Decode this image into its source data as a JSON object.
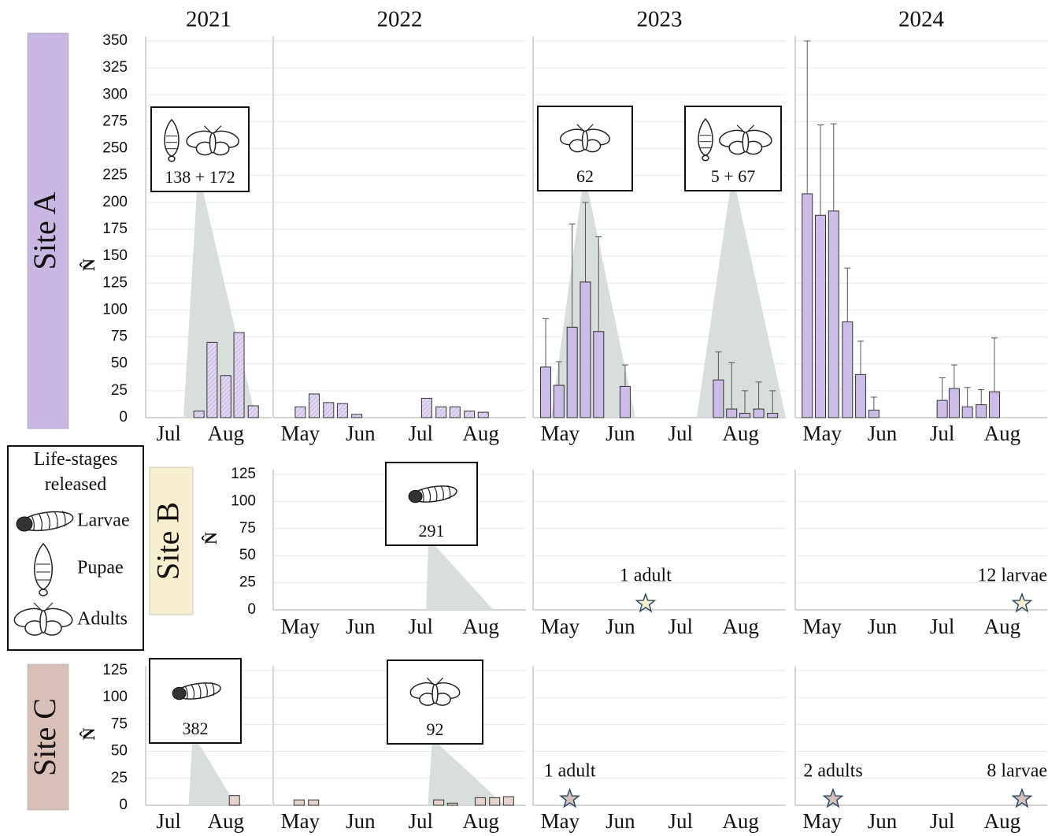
{
  "legend": {
    "title": "Life-stages released",
    "items": [
      "Larvae",
      "Pupae",
      "Adults"
    ]
  },
  "chart_data": {
    "type": "bar",
    "years": [
      "2021",
      "2022",
      "2023",
      "2024"
    ],
    "grid": true,
    "sites": [
      {
        "label": "Site A",
        "y_label": "N̂",
        "color": "#c8b6e3",
        "bar_color": "#cdbce8",
        "ylim": [
          0,
          350
        ],
        "yticks": [
          0,
          25,
          50,
          75,
          100,
          125,
          150,
          175,
          200,
          225,
          250,
          275,
          300,
          325,
          350
        ],
        "panels": [
          {
            "xlim": [
              6.6,
              8.8
            ],
            "xticks": [
              {
                "value": 7,
                "label": "Jul"
              },
              {
                "value": 8,
                "label": "Aug"
              }
            ],
            "hatched": true,
            "x": [
              7.53,
              7.76,
              8.0,
              8.23,
              8.48
            ],
            "values": [
              6,
              70,
              39,
              79,
              11
            ],
            "releases": [
              {
                "text": "138 + 172",
                "icons": [
                  "Pupae",
                  "Adults"
                ],
                "span": [
                  7.26,
                  8.52
                ]
              }
            ]
          },
          {
            "xlim": [
              4.55,
              8.75
            ],
            "xticks": [
              {
                "value": 5,
                "label": "May"
              },
              {
                "value": 6,
                "label": "Jun"
              },
              {
                "value": 7,
                "label": "Jul"
              },
              {
                "value": 8,
                "label": "Aug"
              }
            ],
            "hatched": true,
            "x": [
              5.0,
              5.23,
              5.47,
              5.7,
              5.94,
              7.1,
              7.34,
              7.57,
              7.81,
              8.04
            ],
            "values": [
              10,
              22,
              14,
              13,
              3,
              18,
              10,
              10,
              6,
              5
            ]
          },
          {
            "xlim": [
              4.55,
              8.75
            ],
            "xticks": [
              {
                "value": 5,
                "label": "May"
              },
              {
                "value": 6,
                "label": "Jun"
              },
              {
                "value": 7,
                "label": "Jul"
              },
              {
                "value": 8,
                "label": "Aug"
              }
            ],
            "x": [
              4.76,
              4.98,
              5.2,
              5.42,
              5.64,
              6.08,
              7.63,
              7.85,
              8.07,
              8.3,
              8.53
            ],
            "values": [
              47,
              30,
              84,
              126,
              80,
              29,
              35,
              8,
              4,
              8,
              4
            ],
            "errors": [
              45,
              22,
              96,
              74,
              88,
              20,
              26,
              43,
              21,
              25,
              21
            ],
            "releases": [
              {
                "text": "62",
                "icons": [
                  "Adults"
                ],
                "span": [
                  4.85,
                  6.25
                ]
              },
              {
                "text": "5 + 67",
                "icons": [
                  "Pupae",
                  "Adults"
                ],
                "span": [
                  7.27,
                  8.75
                ]
              }
            ]
          },
          {
            "xlim": [
              4.55,
              8.75
            ],
            "xticks": [
              {
                "value": 5,
                "label": "May"
              },
              {
                "value": 6,
                "label": "Jun"
              },
              {
                "value": 7,
                "label": "Jul"
              },
              {
                "value": 8,
                "label": "Aug"
              }
            ],
            "x": [
              4.75,
              4.97,
              5.19,
              5.42,
              5.64,
              5.86,
              7.0,
              7.2,
              7.42,
              7.65,
              7.87
            ],
            "values": [
              208,
              188,
              192,
              89,
              40,
              7,
              16,
              27,
              10,
              12,
              24
            ],
            "errors": [
              142,
              84,
              81,
              50,
              31,
              12,
              21,
              22,
              18,
              14,
              50
            ]
          }
        ]
      },
      {
        "label": "Site B",
        "y_label": "N̂",
        "color": "#f8efd0",
        "bar_color": "#f8efd0",
        "ylim": [
          0,
          125
        ],
        "yticks": [
          0,
          25,
          50,
          75,
          100,
          125
        ],
        "panels": [
          null,
          {
            "xlim": [
              4.55,
              8.75
            ],
            "xticks": [
              {
                "value": 5,
                "label": "May"
              },
              {
                "value": 6,
                "label": "Jun"
              },
              {
                "value": 7,
                "label": "Jul"
              },
              {
                "value": 8,
                "label": "Aug"
              }
            ],
            "x": [],
            "values": [],
            "releases": [
              {
                "text": "291",
                "icons": [
                  "Larvae"
                ],
                "span": [
                  7.09,
                  8.21
                ]
              }
            ]
          },
          {
            "xlim": [
              4.55,
              8.75
            ],
            "xticks": [
              {
                "value": 5,
                "label": "May"
              },
              {
                "value": 6,
                "label": "Jun"
              },
              {
                "value": 7,
                "label": "Jul"
              },
              {
                "value": 8,
                "label": "Aug"
              }
            ],
            "x": [],
            "values": [],
            "markers": [
              {
                "x": 6.42,
                "label": "1 adult"
              }
            ]
          },
          {
            "xlim": [
              4.55,
              8.75
            ],
            "xticks": [
              {
                "value": 5,
                "label": "May"
              },
              {
                "value": 6,
                "label": "Jun"
              },
              {
                "value": 7,
                "label": "Jul"
              },
              {
                "value": 8,
                "label": "Aug"
              }
            ],
            "x": [],
            "values": [],
            "markers": [
              {
                "x": 8.33,
                "label": "12 larvae"
              }
            ]
          }
        ]
      },
      {
        "label": "Site C",
        "y_label": "N̂",
        "color": "#d8c0b8",
        "bar_color": "#e6d3cc",
        "ylim": [
          0,
          125
        ],
        "yticks": [
          0,
          25,
          50,
          75,
          100,
          125
        ],
        "panels": [
          {
            "xlim": [
              6.6,
              8.8
            ],
            "xticks": [
              {
                "value": 7,
                "label": "Jul"
              },
              {
                "value": 8,
                "label": "Aug"
              }
            ],
            "x": [
              8.15
            ],
            "values": [
              9
            ],
            "releases": [
              {
                "text": "382",
                "icons": [
                  "Larvae"
                ],
                "span": [
                  7.35,
                  8.18
                ]
              }
            ]
          },
          {
            "xlim": [
              4.55,
              8.75
            ],
            "xticks": [
              {
                "value": 5,
                "label": "May"
              },
              {
                "value": 6,
                "label": "Jun"
              },
              {
                "value": 7,
                "label": "Jul"
              },
              {
                "value": 8,
                "label": "Aug"
              }
            ],
            "x": [
              4.98,
              5.22,
              7.3,
              7.53,
              7.99,
              8.23,
              8.46
            ],
            "values": [
              5,
              5,
              5,
              2,
              7,
              7,
              8
            ],
            "releases": [
              {
                "text": "92",
                "icons": [
                  "Adults"
                ],
                "span": [
                  7.12,
                  8.39
                ]
              }
            ]
          },
          {
            "xlim": [
              4.55,
              8.75
            ],
            "xticks": [
              {
                "value": 5,
                "label": "May"
              },
              {
                "value": 6,
                "label": "Jun"
              },
              {
                "value": 7,
                "label": "Jul"
              },
              {
                "value": 8,
                "label": "Aug"
              }
            ],
            "x": [],
            "values": [],
            "markers": [
              {
                "x": 5.16,
                "label": "1 adult"
              }
            ]
          },
          {
            "xlim": [
              4.55,
              8.75
            ],
            "xticks": [
              {
                "value": 5,
                "label": "May"
              },
              {
                "value": 6,
                "label": "Jun"
              },
              {
                "value": 7,
                "label": "Jul"
              },
              {
                "value": 8,
                "label": "Aug"
              }
            ],
            "x": [],
            "values": [],
            "markers": [
              {
                "x": 5.18,
                "label": "2 adults"
              },
              {
                "x": 8.33,
                "label": "8 larvae"
              }
            ]
          }
        ]
      }
    ]
  }
}
